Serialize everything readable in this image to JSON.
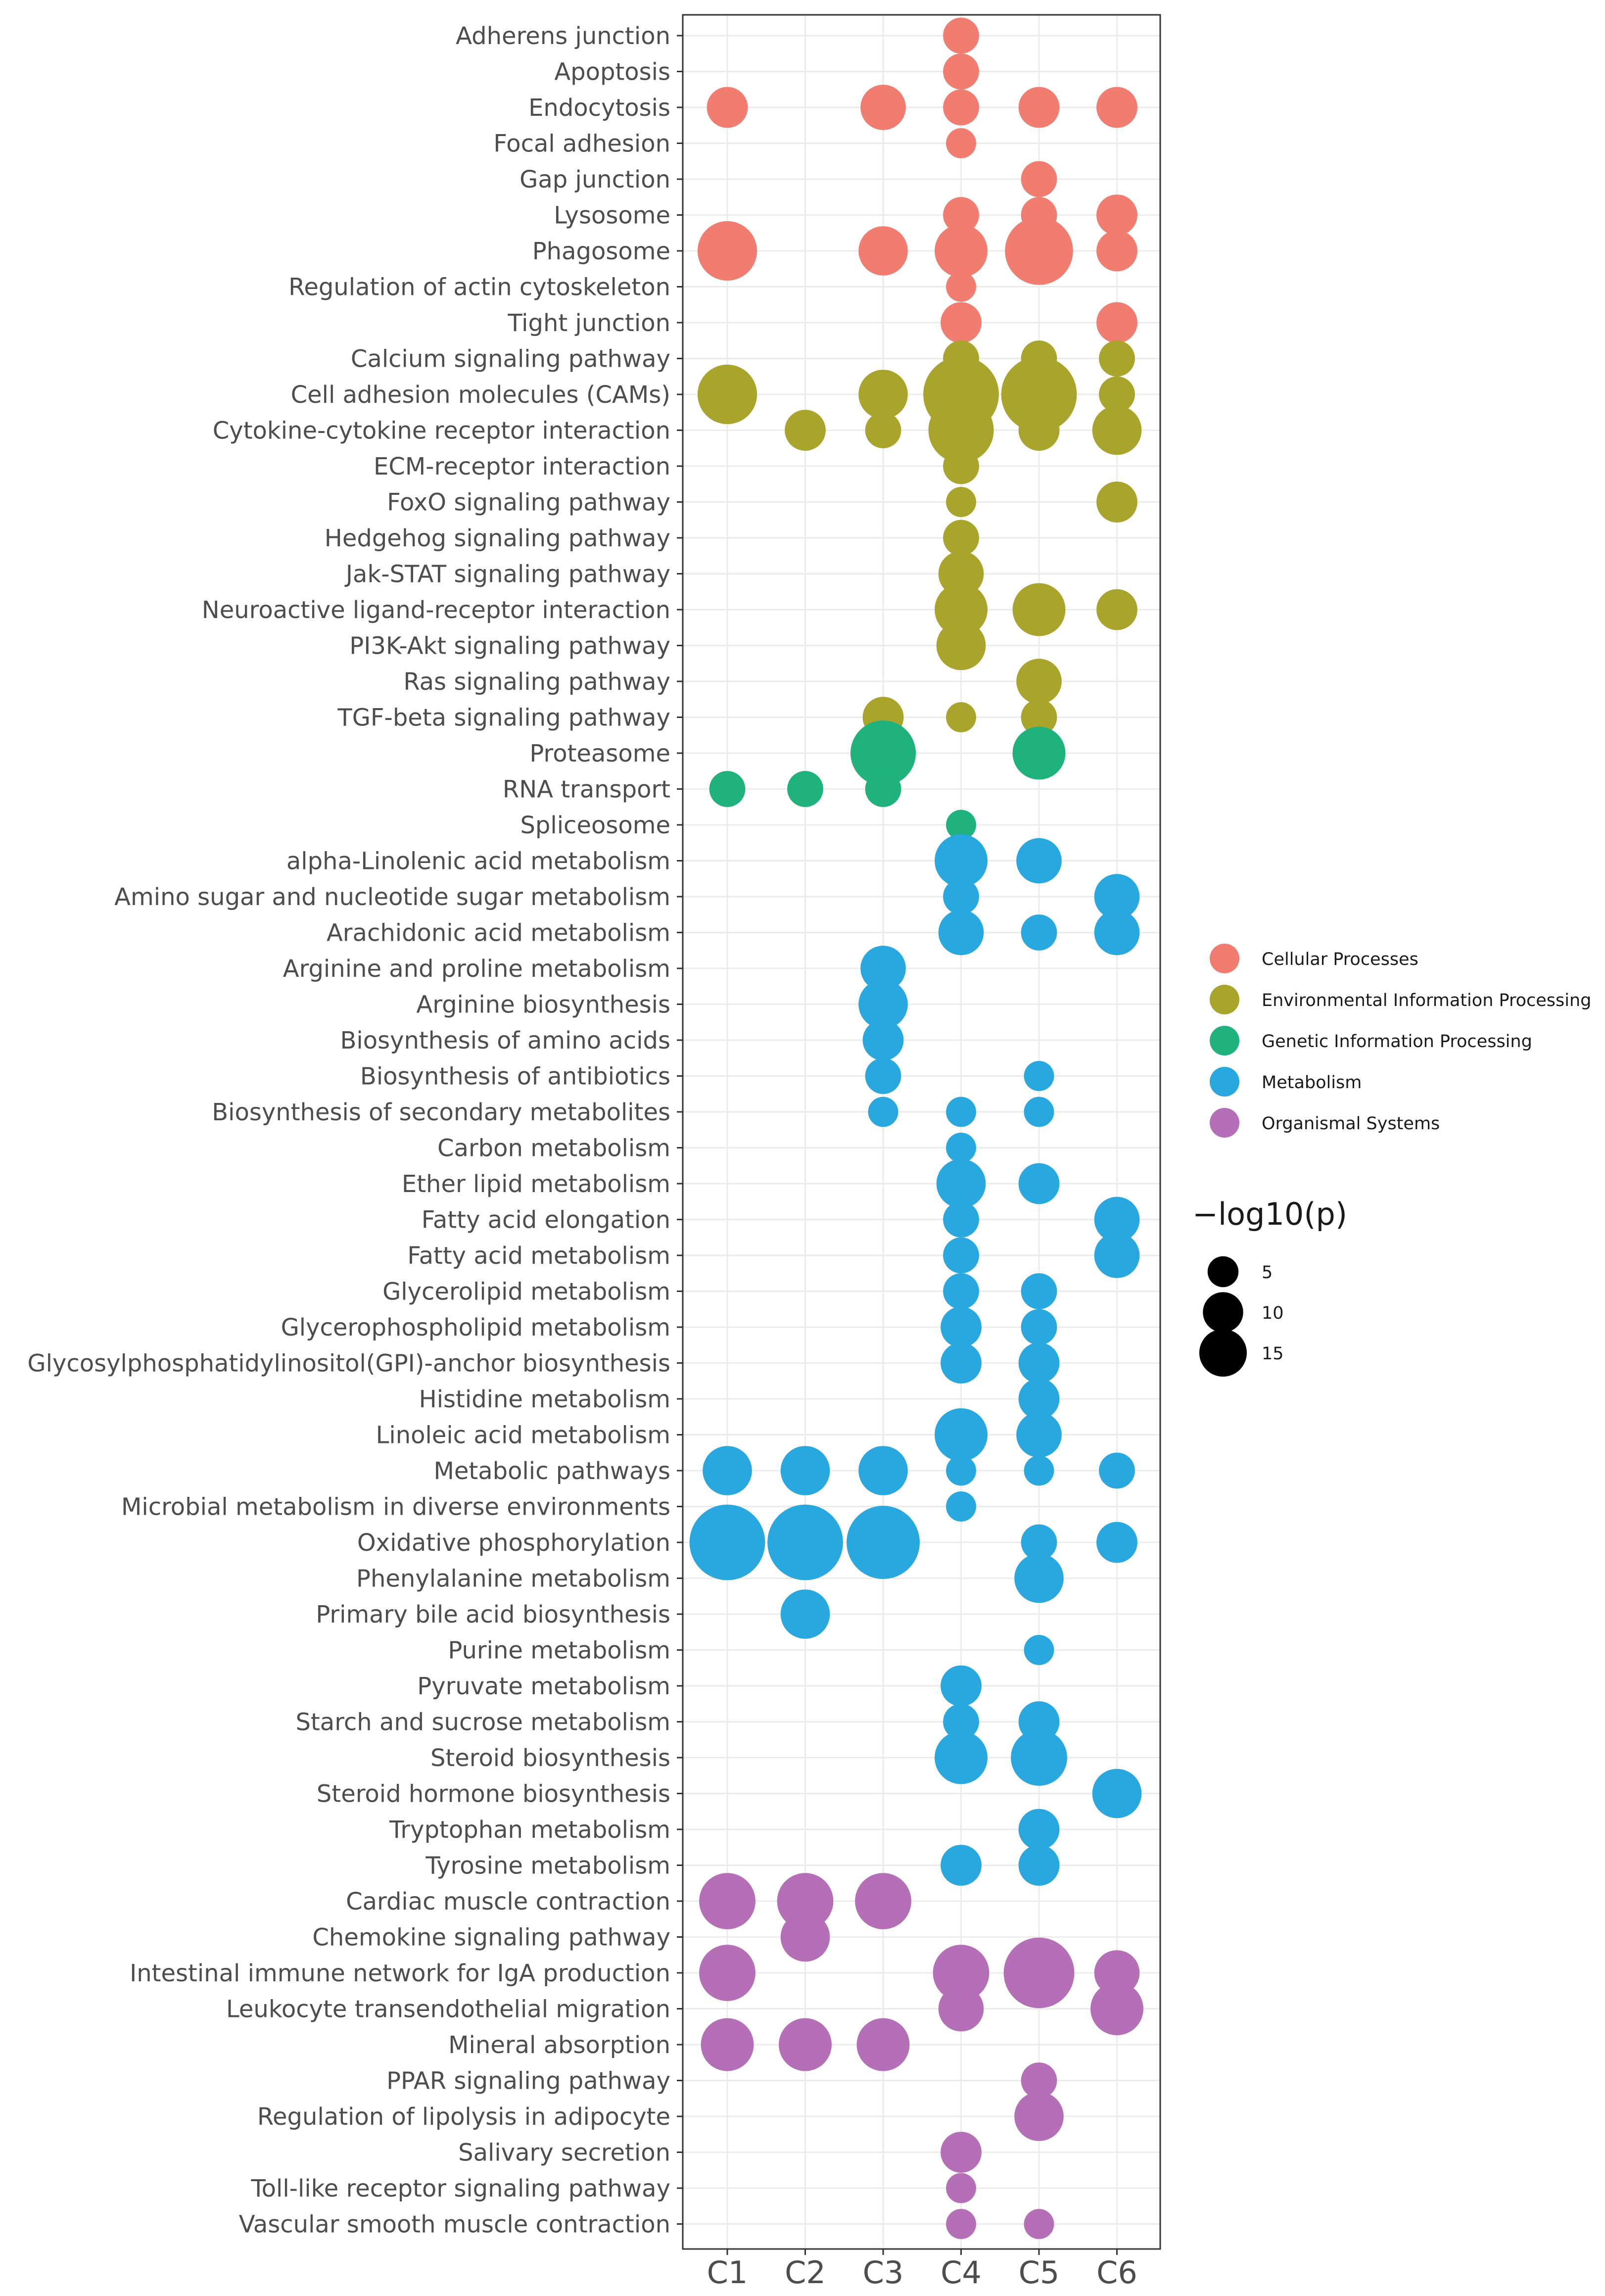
{
  "chart_data": {
    "type": "scatter",
    "title": "",
    "xlabel": "",
    "ylabel": "",
    "categories": [
      "C1",
      "C2",
      "C3",
      "C4",
      "C5",
      "C6"
    ],
    "pathways": [
      "Adherens junction",
      "Apoptosis",
      "Endocytosis",
      "Focal adhesion",
      "Gap junction",
      "Lysosome",
      "Phagosome",
      "Regulation of actin cytoskeleton",
      "Tight junction",
      "Calcium signaling pathway",
      "Cell adhesion molecules (CAMs)",
      "Cytokine-cytokine receptor interaction",
      "ECM-receptor interaction",
      "FoxO signaling pathway",
      "Hedgehog signaling pathway",
      "Jak-STAT signaling pathway",
      "Neuroactive ligand-receptor interaction",
      "PI3K-Akt signaling pathway",
      "Ras signaling pathway",
      "TGF-beta signaling pathway",
      "Proteasome",
      "RNA transport",
      "Spliceosome",
      "alpha-Linolenic acid metabolism",
      "Amino sugar and nucleotide sugar metabolism",
      "Arachidonic acid metabolism",
      "Arginine and proline metabolism",
      "Arginine biosynthesis",
      "Biosynthesis of amino acids",
      "Biosynthesis of antibiotics",
      "Biosynthesis of secondary metabolites",
      "Carbon metabolism",
      "Ether lipid metabolism",
      "Fatty acid elongation",
      "Fatty acid metabolism",
      "Glycerolipid metabolism",
      "Glycerophospholipid metabolism",
      "Glycosylphosphatidylinositol(GPI)-anchor biosynthesis",
      "Histidine metabolism",
      "Linoleic acid metabolism",
      "Metabolic pathways",
      "Microbial metabolism in diverse environments",
      "Oxidative phosphorylation",
      "Phenylalanine metabolism",
      "Primary bile acid biosynthesis",
      "Purine metabolism",
      "Pyruvate metabolism",
      "Starch and sucrose metabolism",
      "Steroid biosynthesis",
      "Steroid hormone biosynthesis",
      "Tryptophan metabolism",
      "Tyrosine metabolism",
      "Cardiac muscle contraction",
      "Chemokine signaling pathway",
      "Intestinal immune network for IgA production",
      "Leukocyte transendothelial migration",
      "Mineral absorption",
      "PPAR signaling pathway",
      "Regulation of lipolysis in adipocyte",
      "Salivary secretion",
      "Toll-like receptor signaling pathway",
      "Vascular smooth muscle contraction"
    ],
    "pathway_category": [
      0,
      0,
      0,
      0,
      0,
      0,
      0,
      0,
      0,
      1,
      1,
      1,
      1,
      1,
      1,
      1,
      1,
      1,
      1,
      1,
      2,
      2,
      2,
      3,
      3,
      3,
      3,
      3,
      3,
      3,
      3,
      3,
      3,
      3,
      3,
      3,
      3,
      3,
      3,
      3,
      3,
      3,
      3,
      3,
      3,
      3,
      3,
      3,
      3,
      3,
      3,
      3,
      4,
      4,
      4,
      4,
      4,
      4,
      4,
      4,
      4,
      4
    ],
    "points": [
      [
        0,
        3,
        3
      ],
      [
        1,
        3,
        3
      ],
      [
        2,
        0,
        4
      ],
      [
        2,
        2,
        5
      ],
      [
        2,
        3,
        3
      ],
      [
        2,
        4,
        4
      ],
      [
        2,
        5,
        4
      ],
      [
        3,
        3,
        2
      ],
      [
        4,
        4,
        3
      ],
      [
        5,
        3,
        3
      ],
      [
        5,
        4,
        3
      ],
      [
        5,
        5,
        4
      ],
      [
        6,
        0,
        9
      ],
      [
        6,
        2,
        6
      ],
      [
        6,
        3,
        7
      ],
      [
        6,
        4,
        12
      ],
      [
        6,
        5,
        4
      ],
      [
        7,
        3,
        2
      ],
      [
        8,
        3,
        4
      ],
      [
        8,
        5,
        4
      ],
      [
        9,
        3,
        3
      ],
      [
        9,
        4,
        3
      ],
      [
        9,
        5,
        3
      ],
      [
        10,
        0,
        9
      ],
      [
        10,
        2,
        6
      ],
      [
        10,
        3,
        15
      ],
      [
        10,
        4,
        15
      ],
      [
        10,
        5,
        3
      ],
      [
        11,
        1,
        4
      ],
      [
        11,
        2,
        3
      ],
      [
        11,
        3,
        11
      ],
      [
        11,
        4,
        4
      ],
      [
        11,
        5,
        6
      ],
      [
        12,
        3,
        3
      ],
      [
        13,
        3,
        2
      ],
      [
        13,
        5,
        4
      ],
      [
        14,
        3,
        3
      ],
      [
        15,
        3,
        5
      ],
      [
        16,
        3,
        7
      ],
      [
        16,
        4,
        7
      ],
      [
        16,
        5,
        4
      ],
      [
        17,
        3,
        6
      ],
      [
        18,
        4,
        5
      ],
      [
        19,
        2,
        4
      ],
      [
        19,
        3,
        2
      ],
      [
        19,
        4,
        3
      ],
      [
        20,
        2,
        11
      ],
      [
        20,
        4,
        7
      ],
      [
        21,
        0,
        3
      ],
      [
        21,
        1,
        3
      ],
      [
        21,
        2,
        3
      ],
      [
        22,
        3,
        2
      ],
      [
        23,
        3,
        7
      ],
      [
        23,
        4,
        5
      ],
      [
        24,
        3,
        3
      ],
      [
        24,
        5,
        5
      ],
      [
        25,
        3,
        5
      ],
      [
        25,
        4,
        3
      ],
      [
        25,
        5,
        5
      ],
      [
        26,
        2,
        5
      ],
      [
        27,
        2,
        6
      ],
      [
        28,
        2,
        4
      ],
      [
        29,
        2,
        3
      ],
      [
        29,
        4,
        2
      ],
      [
        30,
        2,
        2
      ],
      [
        30,
        3,
        2
      ],
      [
        30,
        4,
        2
      ],
      [
        31,
        3,
        2
      ],
      [
        32,
        3,
        6
      ],
      [
        32,
        4,
        4
      ],
      [
        33,
        3,
        3
      ],
      [
        33,
        5,
        5
      ],
      [
        34,
        3,
        3
      ],
      [
        34,
        5,
        5
      ],
      [
        35,
        3,
        3
      ],
      [
        35,
        4,
        3
      ],
      [
        36,
        3,
        4
      ],
      [
        36,
        4,
        3
      ],
      [
        37,
        3,
        4
      ],
      [
        37,
        4,
        4
      ],
      [
        38,
        4,
        4
      ],
      [
        39,
        3,
        7
      ],
      [
        39,
        4,
        5
      ],
      [
        40,
        0,
        6
      ],
      [
        40,
        1,
        6
      ],
      [
        40,
        2,
        6
      ],
      [
        40,
        3,
        2
      ],
      [
        40,
        4,
        2
      ],
      [
        40,
        5,
        3
      ],
      [
        41,
        3,
        2
      ],
      [
        42,
        0,
        15
      ],
      [
        42,
        1,
        15
      ],
      [
        42,
        2,
        14
      ],
      [
        42,
        4,
        3
      ],
      [
        42,
        5,
        4
      ],
      [
        43,
        4,
        6
      ],
      [
        44,
        1,
        6
      ],
      [
        45,
        4,
        2
      ],
      [
        46,
        3,
        4
      ],
      [
        47,
        3,
        3
      ],
      [
        47,
        4,
        4
      ],
      [
        48,
        3,
        7
      ],
      [
        48,
        4,
        8
      ],
      [
        49,
        5,
        6
      ],
      [
        50,
        4,
        4
      ],
      [
        51,
        3,
        4
      ],
      [
        51,
        4,
        4
      ],
      [
        52,
        0,
        8
      ],
      [
        52,
        1,
        8
      ],
      [
        52,
        2,
        8
      ],
      [
        53,
        1,
        6
      ],
      [
        54,
        0,
        8
      ],
      [
        54,
        3,
        8
      ],
      [
        54,
        4,
        13
      ],
      [
        54,
        5,
        5
      ],
      [
        55,
        3,
        5
      ],
      [
        55,
        5,
        7
      ],
      [
        56,
        0,
        7
      ],
      [
        56,
        1,
        7
      ],
      [
        56,
        2,
        7
      ],
      [
        57,
        4,
        3
      ],
      [
        58,
        4,
        6
      ],
      [
        59,
        3,
        4
      ],
      [
        60,
        3,
        2
      ],
      [
        61,
        3,
        2
      ],
      [
        61,
        4,
        2
      ]
    ],
    "legend": {
      "color_title": "",
      "color": [
        {
          "label": "Cellular Processes",
          "color": "#F17D71"
        },
        {
          "label": "Environmental Information Processing",
          "color": "#A9A42B"
        },
        {
          "label": "Genetic Information Processing",
          "color": "#1FB27D"
        },
        {
          "label": "Metabolism",
          "color": "#29A8E0"
        },
        {
          "label": "Organismal Systems",
          "color": "#B56FB7"
        }
      ],
      "size_title": "−log10(p)",
      "size": [
        {
          "label": "5",
          "value": 5
        },
        {
          "label": "10",
          "value": 10
        },
        {
          "label": "15",
          "value": 15
        }
      ]
    },
    "grid": true,
    "legend_position": "right"
  }
}
